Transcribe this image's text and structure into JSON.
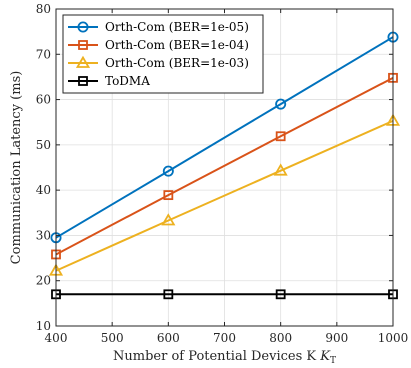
{
  "chart_data": {
    "type": "line",
    "xlabel": "Number of Potential Devices K",
    "xlabel_sub": "T",
    "ylabel": "Communication Latency (ms)",
    "xlim": [
      400,
      1000
    ],
    "ylim": [
      10,
      80
    ],
    "xticks": [
      400,
      500,
      600,
      700,
      800,
      900,
      1000
    ],
    "yticks": [
      10,
      20,
      30,
      40,
      50,
      60,
      70,
      80
    ],
    "grid": true,
    "legend_position": "top-left",
    "x": [
      400,
      600,
      800,
      1000
    ],
    "series": [
      {
        "name": "Orth-Com (BER=1e-05)",
        "values": [
          29.5,
          44.2,
          59.0,
          73.8
        ],
        "color": "#0072BD",
        "marker": "circle"
      },
      {
        "name": "Orth-Com (BER=1e-04)",
        "values": [
          25.8,
          38.9,
          51.9,
          64.8
        ],
        "color": "#D95319",
        "marker": "square"
      },
      {
        "name": "Orth-Com (BER=1e-03)",
        "values": [
          22.2,
          33.3,
          44.3,
          55.3
        ],
        "color": "#EDB120",
        "marker": "triangle"
      },
      {
        "name": "ToDMA",
        "values": [
          17.0,
          17.0,
          17.0,
          17.0
        ],
        "color": "#000000",
        "marker": "square"
      }
    ]
  }
}
